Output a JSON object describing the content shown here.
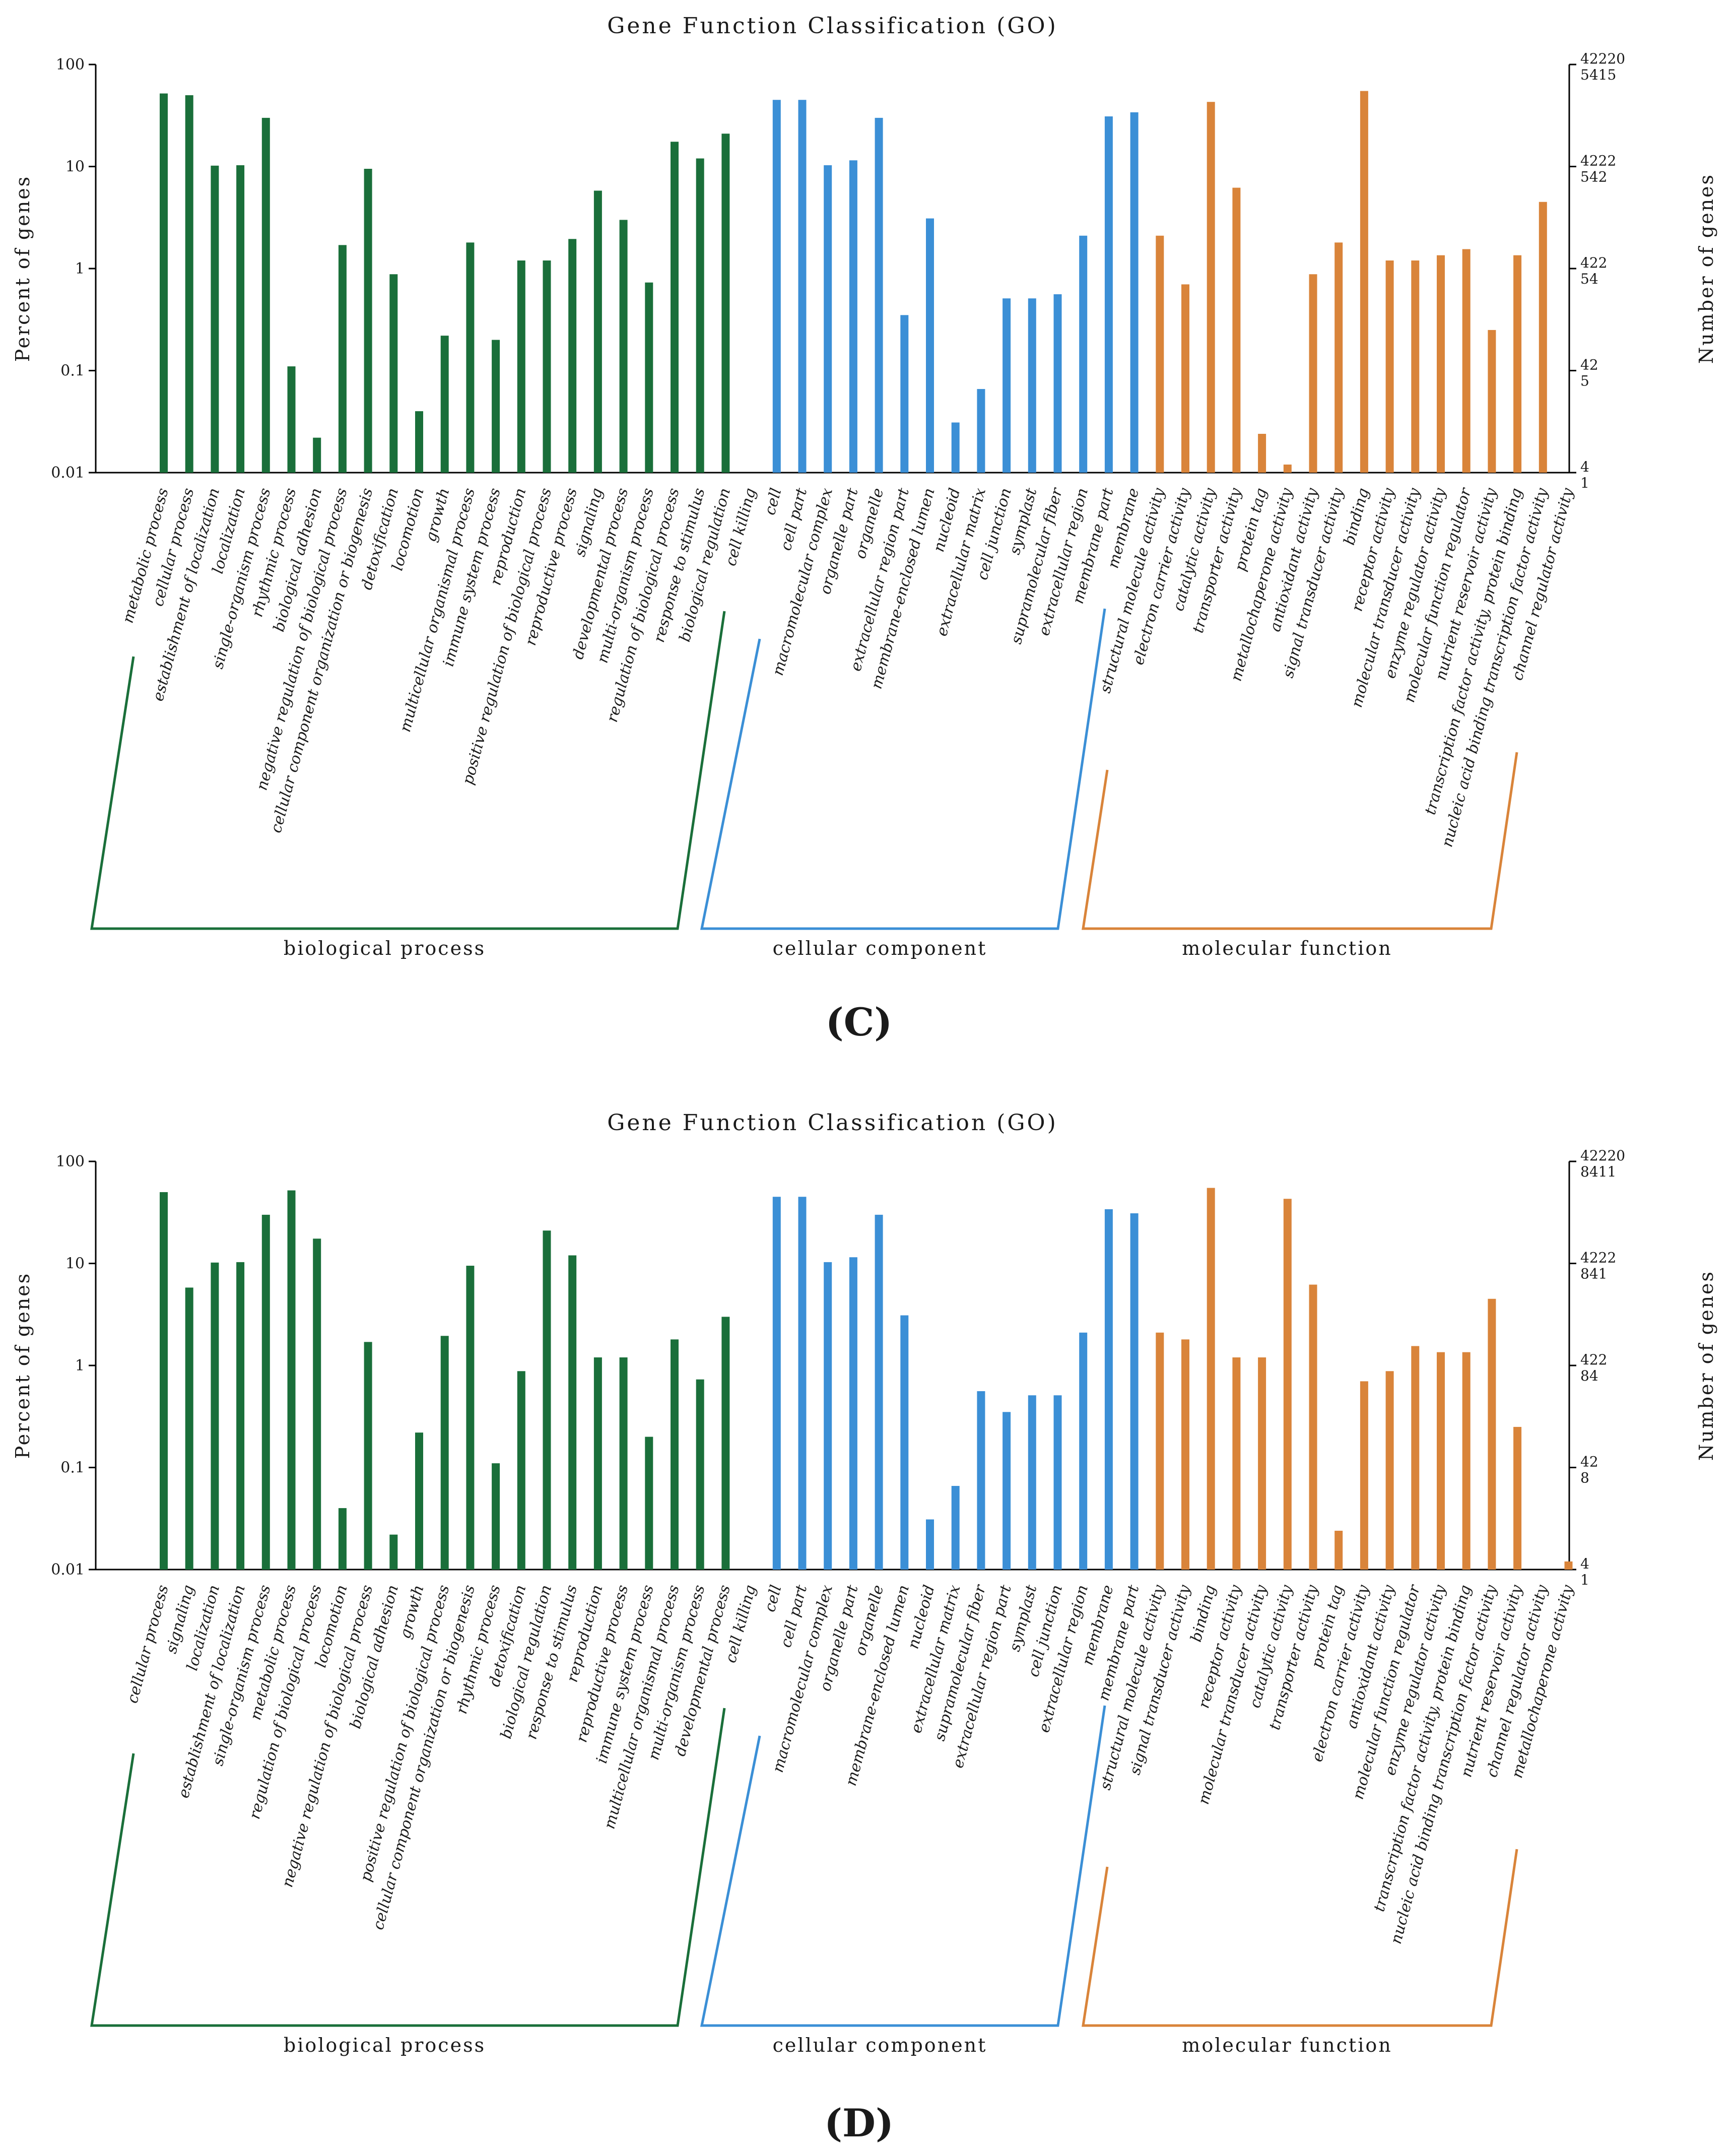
{
  "colors": {
    "biological_process": "#1a6f3a",
    "cellular_component": "#3b8fd6",
    "molecular_function": "#d9843a",
    "axis": "#000000"
  },
  "chart_data": [
    {
      "panel_label": "(C)",
      "type": "bar",
      "title": "Gene Function Classification (GO)",
      "ylabel": "Percent of genes",
      "ylabel_right": "Number of genes",
      "yscale": "log",
      "ylim": [
        0.01,
        100
      ],
      "y_ticks": [
        "100",
        "10",
        "1",
        "0.1",
        "0.01"
      ],
      "right_ticks": [
        [
          "42220",
          "5415"
        ],
        [
          "4222",
          "542"
        ],
        [
          "422",
          "54"
        ],
        [
          "42",
          "5"
        ],
        [
          "4",
          "1"
        ]
      ],
      "groups": [
        {
          "name": "biological process",
          "color_key": "biological_process",
          "categories": [
            "metabolic process",
            "cellular process",
            "establishment of localization",
            "localization",
            "single-organism process",
            "rhythmic process",
            "biological adhesion",
            "negative regulation of biological process",
            "cellular component organization or biogenesis",
            "detoxification",
            "locomotion",
            "growth",
            "multicellular organismal process",
            "immune system process",
            "reproduction",
            "positive regulation of biological process",
            "reproductive process",
            "signaling",
            "developmental process",
            "multi-organism process",
            "regulation of biological process",
            "response to stimulus",
            "biological regulation",
            "cell killing"
          ],
          "values": [
            52,
            50,
            10.2,
            10.3,
            30,
            0.11,
            0.022,
            1.7,
            9.5,
            0.88,
            0.04,
            0.22,
            1.8,
            0.2,
            1.2,
            1.2,
            1.95,
            5.8,
            3.0,
            0.73,
            17.5,
            12,
            21,
            null
          ]
        },
        {
          "name": "cellular component",
          "color_key": "cellular_component",
          "categories": [
            "cell",
            "cell part",
            "macromolecular complex",
            "organelle part",
            "organelle",
            "extracellular region part",
            "membrane-enclosed lumen",
            "nucleoid",
            "extracellular matrix",
            "cell junction",
            "symplast",
            "supramolecular fiber",
            "extracellular region",
            "membrane part",
            "membrane"
          ],
          "values": [
            45,
            45,
            10.3,
            11.5,
            30,
            0.35,
            3.1,
            0.031,
            0.066,
            0.51,
            0.51,
            0.56,
            2.1,
            31,
            34
          ]
        },
        {
          "name": "molecular function",
          "color_key": "molecular_function",
          "categories": [
            "structural molecule activity",
            "electron carrier activity",
            "catalytic activity",
            "transporter activity",
            "protein tag",
            "metallochaperone activity",
            "antioxidant activity",
            "signal transducer activity",
            "binding",
            "receptor activity",
            "molecular transducer activity",
            "enzyme regulator activity",
            "molecular function regulator",
            "nutrient reservoir activity",
            "transcription factor activity, protein binding",
            "nucleic acid binding transcription factor activity",
            "channel regulator activity"
          ],
          "values": [
            2.1,
            0.7,
            43,
            6.2,
            0.024,
            0.012,
            0.88,
            1.8,
            55,
            1.2,
            1.2,
            1.35,
            1.55,
            0.25,
            1.35,
            4.5,
            null
          ]
        }
      ]
    },
    {
      "panel_label": "(D)",
      "type": "bar",
      "title": "Gene Function Classification (GO)",
      "ylabel": "Percent of genes",
      "ylabel_right": "Number of genes",
      "yscale": "log",
      "ylim": [
        0.01,
        100
      ],
      "y_ticks": [
        "100",
        "10",
        "1",
        "0.1",
        "0.01"
      ],
      "right_ticks": [
        [
          "42220",
          "8411"
        ],
        [
          "4222",
          "841"
        ],
        [
          "422",
          "84"
        ],
        [
          "42",
          "8"
        ],
        [
          "4",
          "1"
        ]
      ],
      "groups": [
        {
          "name": "biological process",
          "color_key": "biological_process",
          "categories": [
            "cellular process",
            "signaling",
            "localization",
            "establishment of localization",
            "single-organism process",
            "metabolic process",
            "regulation of biological process",
            "locomotion",
            "negative regulation of biological process",
            "biological adhesion",
            "growth",
            "positive regulation of biological process",
            "cellular component organization or biogenesis",
            "rhythmic process",
            "detoxification",
            "biological regulation",
            "response to stimulus",
            "reproduction",
            "reproductive process",
            "immune system process",
            "multicellular organismal process",
            "multi-organism process",
            "developmental process",
            "cell killing"
          ],
          "values": [
            50,
            5.8,
            10.2,
            10.3,
            30,
            52,
            17.5,
            0.04,
            1.7,
            0.022,
            0.22,
            1.95,
            9.5,
            0.11,
            0.88,
            21,
            12,
            1.2,
            1.2,
            0.2,
            1.8,
            0.73,
            3.0,
            null
          ]
        },
        {
          "name": "cellular component",
          "color_key": "cellular_component",
          "categories": [
            "cell",
            "cell part",
            "macromolecular complex",
            "organelle part",
            "organelle",
            "membrane-enclosed lumen",
            "nucleoid",
            "extracellular matrix",
            "supramolecular fiber",
            "extracellular region part",
            "symplast",
            "cell junction",
            "extracellular region",
            "membrane",
            "membrane part"
          ],
          "values": [
            45,
            45,
            10.3,
            11.5,
            30,
            3.1,
            0.031,
            0.066,
            0.56,
            0.35,
            0.51,
            0.51,
            2.1,
            34,
            31
          ]
        },
        {
          "name": "molecular function",
          "color_key": "molecular_function",
          "categories": [
            "structural molecule activity",
            "signal transducer activity",
            "binding",
            "receptor activity",
            "molecular transducer activity",
            "catalytic activity",
            "transporter activity",
            "protein tag",
            "electron carrier activity",
            "antioxidant activity",
            "molecular function regulator",
            "enzyme regulator activity",
            "transcription factor activity, protein binding",
            "nucleic acid binding transcription factor activity",
            "nutrient reservoir activity",
            "channel regulator activity",
            "metallochaperone activity"
          ],
          "values": [
            2.1,
            1.8,
            55,
            1.2,
            1.2,
            43,
            6.2,
            0.024,
            0.7,
            0.88,
            1.55,
            1.35,
            1.35,
            4.5,
            0.25,
            null,
            0.012
          ]
        }
      ]
    }
  ]
}
